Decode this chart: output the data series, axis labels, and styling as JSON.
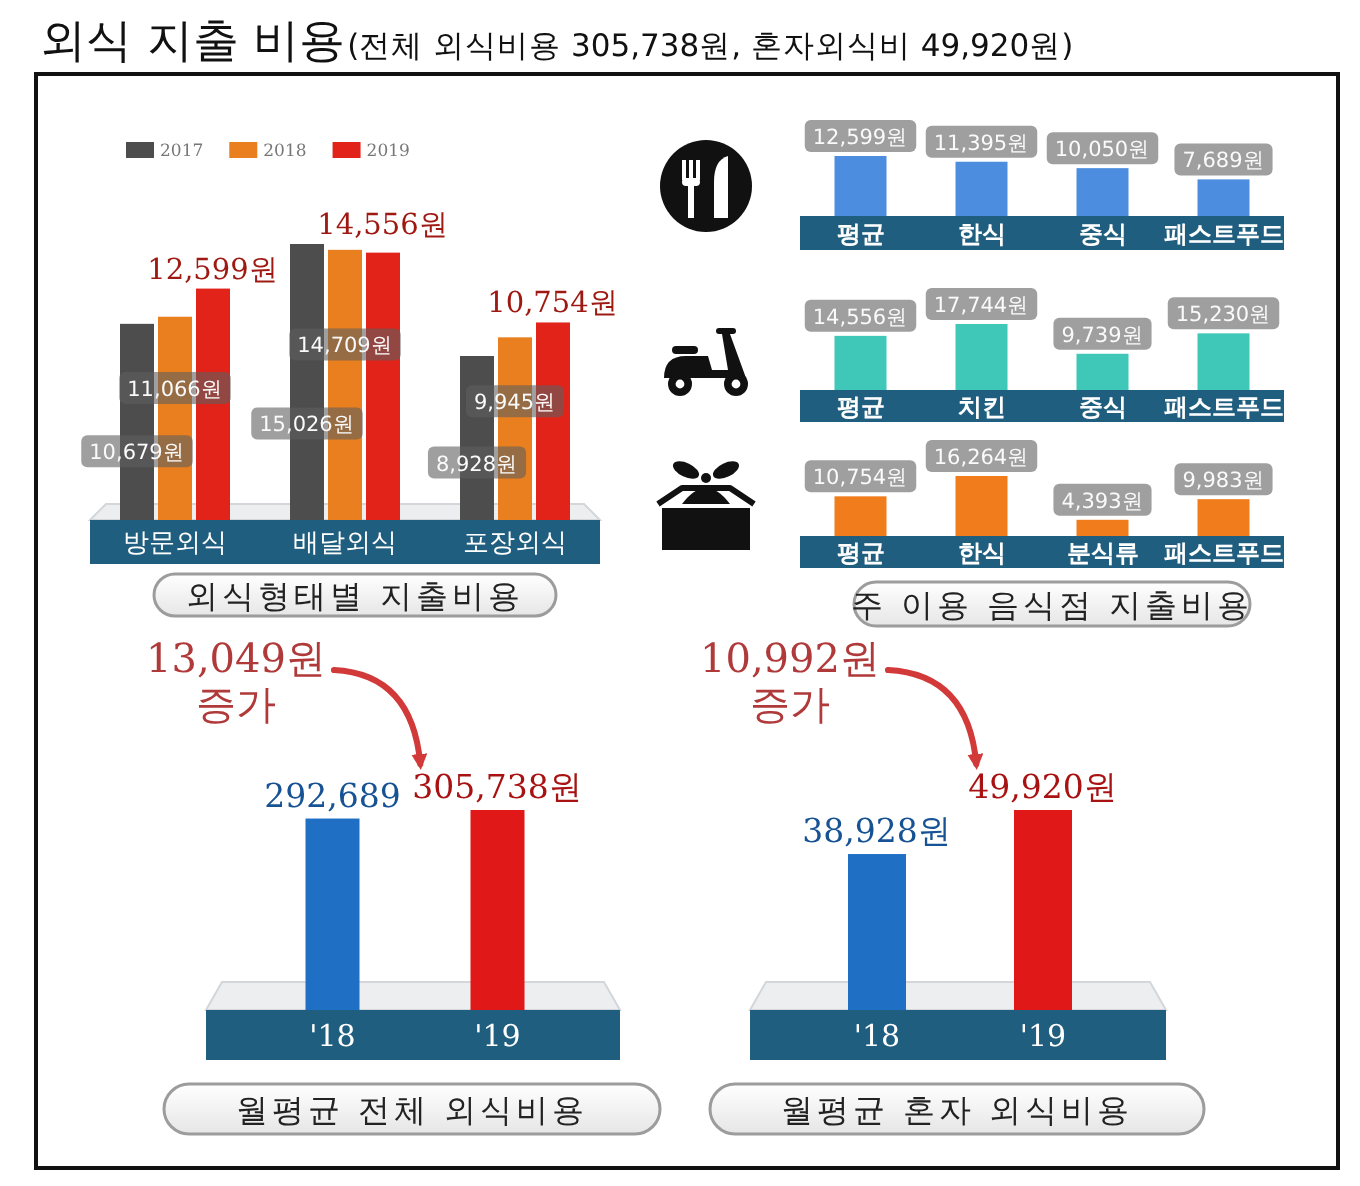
{
  "chart_data": [
    {
      "type": "bar",
      "title": "외식 지출 비용",
      "subtitle": "(전체 외식비용 305,738원, 혼자외식비 49,920원)",
      "xlabel": "외식형태별 지출비용",
      "categories": [
        "방문외식",
        "배달외식",
        "포장외식"
      ],
      "series": [
        {
          "name": "2017",
          "color": "#4d4d4d",
          "values": [
            10679,
            15026,
            8928
          ],
          "value_labels": [
            "10,679원",
            "15,026원",
            "8,928원"
          ]
        },
        {
          "name": "2018",
          "color": "#e97f1f",
          "values": [
            11066,
            14709,
            9945
          ],
          "value_labels": [
            "11,066원",
            "14,709원",
            "9,945원"
          ]
        },
        {
          "name": "2019",
          "color": "#e2231a",
          "values": [
            12599,
            14556,
            10754
          ],
          "value_labels": [
            "12,599원",
            "14,556원",
            "10,754원"
          ]
        }
      ],
      "legend": "top left"
    },
    {
      "type": "bar",
      "categories": [
        "평균",
        "한식",
        "중식",
        "패스트푸드"
      ],
      "values": [
        12599,
        11395,
        10050,
        7689
      ],
      "color": "#4d8de0",
      "value_labels": [
        "12,599원",
        "11,395원",
        "10,050원",
        "7,689원"
      ]
    },
    {
      "type": "bar",
      "categories": [
        "평균",
        "치킨",
        "중식",
        "패스트푸드"
      ],
      "values": [
        14556,
        17744,
        9739,
        15230
      ],
      "color": "#3fc8b8",
      "value_labels": [
        "14,556원",
        "17,744원",
        "9,739원",
        "15,230원"
      ]
    },
    {
      "type": "bar",
      "xlabel": "주 이용 음식점 지출비용",
      "categories": [
        "평균",
        "한식",
        "분식류",
        "패스트푸드"
      ],
      "values": [
        10754,
        16264,
        4393,
        9983
      ],
      "color": "#f07c1c",
      "value_labels": [
        "10,754원",
        "16,264원",
        "4,393원",
        "9,983원"
      ]
    },
    {
      "type": "bar",
      "xlabel": "월평균 전체 외식비용",
      "categories": [
        "'18",
        "'19"
      ],
      "values": [
        292689,
        305738
      ],
      "colors": [
        "#1f6fc5",
        "#e01818"
      ],
      "value_labels": [
        "292,689",
        "305,738원"
      ],
      "annotations": [
        "13,049원 증가"
      ]
    },
    {
      "type": "bar",
      "xlabel": "월평균 혼자 외식비용",
      "categories": [
        "'18",
        "'19"
      ],
      "values": [
        38928,
        49920
      ],
      "colors": [
        "#1f6fc5",
        "#e01818"
      ],
      "value_labels": [
        "38,928원",
        "49,920원"
      ],
      "annotations": [
        "10,992원 증가"
      ]
    }
  ]
}
